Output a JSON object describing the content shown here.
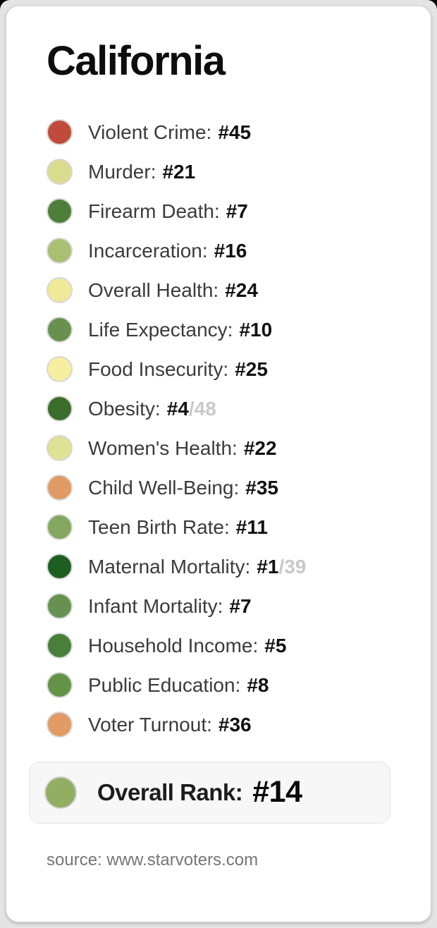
{
  "title": "California",
  "metrics": [
    {
      "label": "Violent Crime:",
      "rank": "#45",
      "denominator": "",
      "color": "#c14b3a"
    },
    {
      "label": "Murder:",
      "rank": "#21",
      "denominator": "",
      "color": "#d9dc8c"
    },
    {
      "label": "Firearm Death:",
      "rank": "#7",
      "denominator": "",
      "color": "#4e7e3a"
    },
    {
      "label": "Incarceration:",
      "rank": "#16",
      "denominator": "",
      "color": "#a9bf72"
    },
    {
      "label": "Overall Health:",
      "rank": "#24",
      "denominator": "",
      "color": "#efe998"
    },
    {
      "label": "Life Expectancy:",
      "rank": "#10",
      "denominator": "",
      "color": "#689150"
    },
    {
      "label": "Food Insecurity:",
      "rank": "#25",
      "denominator": "",
      "color": "#f5ef9f"
    },
    {
      "label": "Obesity:",
      "rank": "#4",
      "denominator": "/48",
      "color": "#3b6d2d"
    },
    {
      "label": "Women's Health:",
      "rank": "#22",
      "denominator": "",
      "color": "#dfe293"
    },
    {
      "label": "Child Well-Being:",
      "rank": "#35",
      "denominator": "",
      "color": "#e09a64"
    },
    {
      "label": "Teen Birth Rate:",
      "rank": "#11",
      "denominator": "",
      "color": "#84a75f"
    },
    {
      "label": "Maternal Mortality:",
      "rank": "#1",
      "denominator": "/39",
      "color": "#1f5e21"
    },
    {
      "label": "Infant Mortality:",
      "rank": "#7",
      "denominator": "",
      "color": "#679150"
    },
    {
      "label": "Household Income:",
      "rank": "#5",
      "denominator": "",
      "color": "#48803a"
    },
    {
      "label": "Public Education:",
      "rank": "#8",
      "denominator": "",
      "color": "#639347"
    },
    {
      "label": "Voter Turnout:",
      "rank": "#36",
      "denominator": "",
      "color": "#e29b64"
    }
  ],
  "overall": {
    "label": "Overall Rank:",
    "rank": "#14",
    "color": "#92ae63"
  },
  "source": "source: www.starvoters.com",
  "theme": {
    "good_color": "#1f5e21",
    "bad_color": "#c14b3a",
    "neutral_color": "#efe998",
    "card_bg": "#ffffff",
    "page_bg": "#e4e4e4"
  },
  "chart_data": {
    "type": "table",
    "title": "California",
    "categories": [
      "Violent Crime",
      "Murder",
      "Firearm Death",
      "Incarceration",
      "Overall Health",
      "Life Expectancy",
      "Food Insecurity",
      "Obesity",
      "Women's Health",
      "Child Well-Being",
      "Teen Birth Rate",
      "Maternal Mortality",
      "Infant Mortality",
      "Household Income",
      "Public Education",
      "Voter Turnout"
    ],
    "values": [
      45,
      21,
      7,
      16,
      24,
      10,
      25,
      4,
      22,
      35,
      11,
      1,
      7,
      5,
      8,
      36
    ],
    "denominators": [
      null,
      null,
      null,
      null,
      null,
      null,
      null,
      48,
      null,
      null,
      null,
      39,
      null,
      null,
      null,
      null
    ],
    "overall_rank": 14,
    "legend_colors": [
      "#c14b3a",
      "#d9dc8c",
      "#4e7e3a",
      "#a9bf72",
      "#efe998",
      "#689150",
      "#f5ef9f",
      "#3b6d2d",
      "#dfe293",
      "#e09a64",
      "#84a75f",
      "#1f5e21",
      "#679150",
      "#48803a",
      "#639347",
      "#e29b64"
    ]
  }
}
